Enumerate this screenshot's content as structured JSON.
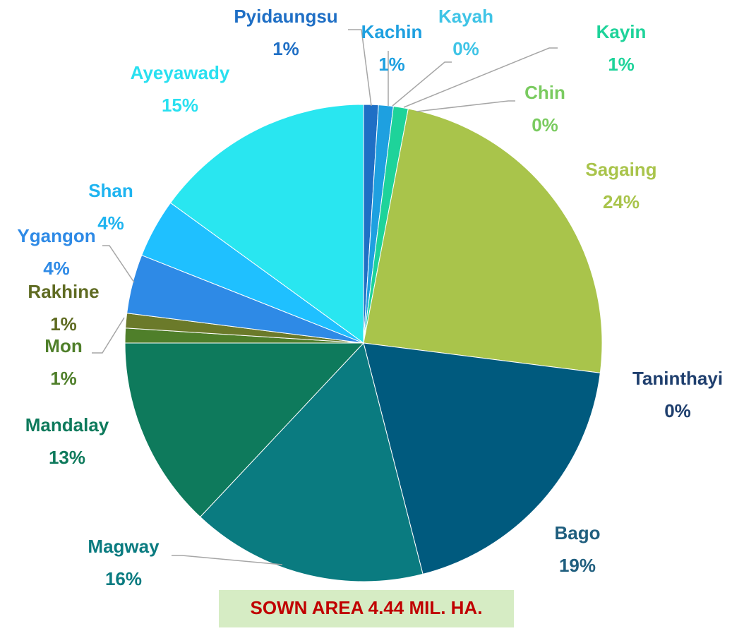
{
  "chart_data": {
    "type": "pie",
    "categories": [
      "Pyidaungsu",
      "Kachin",
      "Kayah",
      "Kayin",
      "Chin",
      "Sagaing",
      "Taninthayi",
      "Bago",
      "Magway",
      "Mandalay",
      "Mon",
      "Rakhine",
      "Ygangon",
      "Shan",
      "Ayeyawady"
    ],
    "values": [
      1,
      1,
      0,
      1,
      0,
      24,
      0,
      19,
      16,
      13,
      1,
      1,
      4,
      4,
      15
    ],
    "value_labels": [
      "1%",
      "1%",
      "0%",
      "1%",
      "0%",
      "24%",
      "0%",
      "19%",
      "16%",
      "13%",
      "1%",
      "1%",
      "4%",
      "4%",
      "15%"
    ],
    "colors": [
      "#1f6fc5",
      "#1ea0e0",
      "#3fc4e6",
      "#1ed39a",
      "#7acb60",
      "#a9c44b",
      "#1f4e79",
      "#005a7e",
      "#0a7b80",
      "#0e7a5c",
      "#4f7f2a",
      "#6b7a2a",
      "#2e8ae6",
      "#1fc0ff",
      "#29e6f0"
    ],
    "label_colors": [
      "#1f6fc5",
      "#1ea0e0",
      "#3fc4e6",
      "#1ed39a",
      "#7acb60",
      "#a9c44b",
      "#1f3f6e",
      "#1f5e7e",
      "#0a7b80",
      "#0e7a5c",
      "#4f7f2a",
      "#5f6b22",
      "#2e8ae6",
      "#1fb4f0",
      "#29e0f0"
    ],
    "annotation": "SOWN AREA 4.44 MIL. HA."
  }
}
